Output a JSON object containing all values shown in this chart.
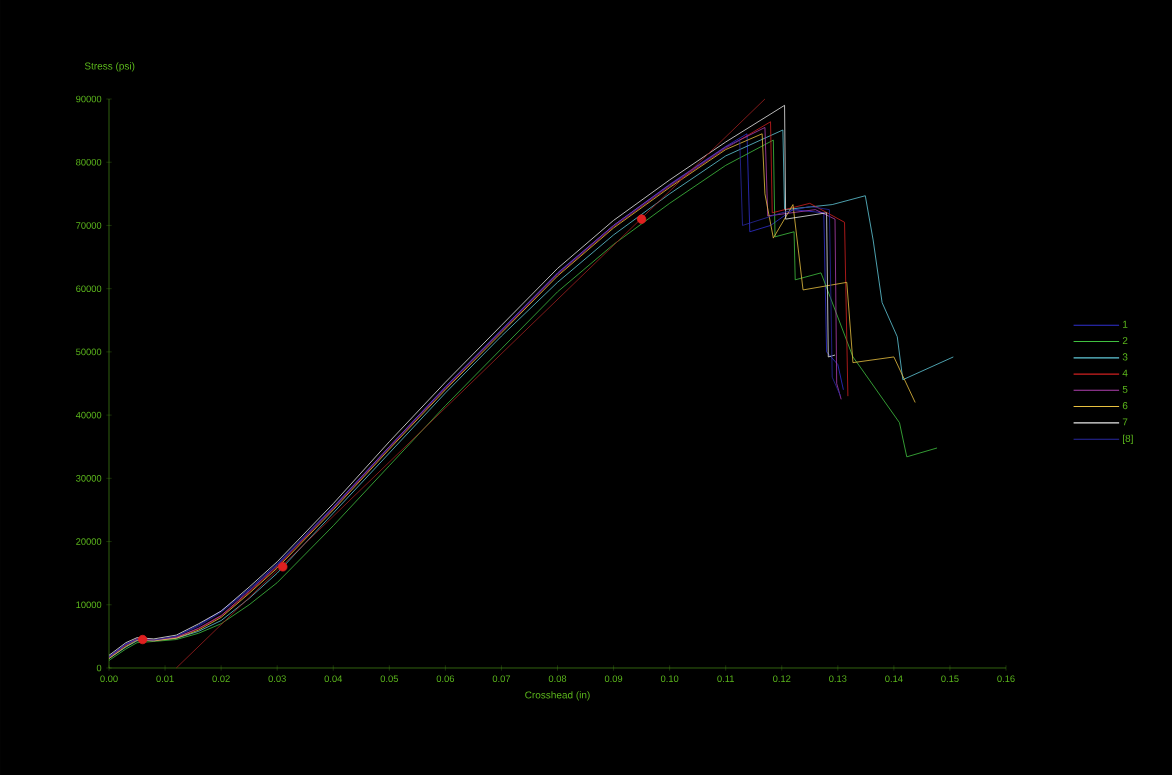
{
  "chart_data": {
    "type": "line",
    "xlabel": "Crosshead (in)",
    "ylabel": "Stress (psi)",
    "xlim": [
      0,
      0.16
    ],
    "ylim": [
      0,
      90000
    ],
    "xticks": [
      {
        "value": 0,
        "label": "0.00"
      },
      {
        "value": 0.01,
        "label": "0.01"
      },
      {
        "value": 0.02,
        "label": "0.02"
      },
      {
        "value": 0.03,
        "label": "0.03"
      },
      {
        "value": 0.04,
        "label": "0.04"
      },
      {
        "value": 0.05,
        "label": "0.05"
      },
      {
        "value": 0.06,
        "label": "0.06"
      },
      {
        "value": 0.07,
        "label": "0.07"
      },
      {
        "value": 0.08,
        "label": "0.08"
      },
      {
        "value": 0.09,
        "label": "0.09"
      },
      {
        "value": 0.1,
        "label": "0.10"
      },
      {
        "value": 0.11,
        "label": "0.11"
      },
      {
        "value": 0.12,
        "label": "0.12"
      },
      {
        "value": 0.13,
        "label": "0.13"
      },
      {
        "value": 0.14,
        "label": "0.14"
      },
      {
        "value": 0.15,
        "label": "0.15"
      },
      {
        "value": 0.16,
        "label": "0.16"
      }
    ],
    "yticks": [
      0,
      10000,
      20000,
      30000,
      40000,
      50000,
      60000,
      70000,
      80000,
      90000
    ],
    "legend": "right",
    "series": [
      {
        "name": "1",
        "color": "#3030d0",
        "x": [
          0,
          0.003,
          0.005,
          0.008,
          0.012,
          0.016,
          0.02,
          0.025,
          0.03,
          0.04,
          0.05,
          0.06,
          0.07,
          0.08,
          0.09,
          0.1,
          0.11,
          0.1138,
          0.1143,
          0.118,
          0.122,
          0.1275,
          0.128,
          0.13,
          0.131
        ],
        "values": [
          1800,
          3800,
          4600,
          4400,
          5000,
          6800,
          9000,
          12500,
          16500,
          25500,
          35000,
          44500,
          53500,
          62500,
          70000,
          76500,
          82500,
          84500,
          69000,
          70000,
          72500,
          72000,
          50000,
          48000,
          44000
        ]
      },
      {
        "name": "2",
        "color": "#40c040",
        "x": [
          0,
          0.003,
          0.005,
          0.008,
          0.012,
          0.016,
          0.02,
          0.025,
          0.03,
          0.04,
          0.05,
          0.06,
          0.07,
          0.08,
          0.09,
          0.1,
          0.11,
          0.1185,
          0.1188,
          0.1222,
          0.1224,
          0.127,
          0.1327,
          0.134,
          0.141,
          0.1423,
          0.1477
        ],
        "values": [
          1200,
          3000,
          4000,
          4200,
          4500,
          5500,
          7000,
          10000,
          13500,
          22500,
          32000,
          41500,
          50500,
          59500,
          67000,
          73500,
          79500,
          83500,
          68200,
          69000,
          61400,
          62500,
          49200,
          47600,
          38800,
          33400,
          34800
        ]
      },
      {
        "name": "3",
        "color": "#60c8d8",
        "x": [
          0,
          0.003,
          0.005,
          0.008,
          0.012,
          0.016,
          0.02,
          0.025,
          0.03,
          0.04,
          0.05,
          0.06,
          0.07,
          0.08,
          0.09,
          0.1,
          0.11,
          0.1202,
          0.1205,
          0.129,
          0.1349,
          0.1363,
          0.1379,
          0.1406,
          0.1416,
          0.1506
        ],
        "values": [
          1500,
          3300,
          4300,
          4400,
          4700,
          5800,
          7500,
          11000,
          15000,
          24500,
          34000,
          43500,
          52500,
          61000,
          68500,
          75000,
          81000,
          85100,
          72500,
          73300,
          74700,
          67700,
          57800,
          52400,
          45600,
          49200
        ]
      },
      {
        "name": "4",
        "color": "#d02020",
        "x": [
          0,
          0.003,
          0.005,
          0.008,
          0.012,
          0.016,
          0.02,
          0.025,
          0.03,
          0.04,
          0.05,
          0.06,
          0.07,
          0.08,
          0.09,
          0.1,
          0.11,
          0.118,
          0.1183,
          0.125,
          0.1312,
          0.1318
        ],
        "values": [
          1600,
          3600,
          4600,
          4400,
          4900,
          6200,
          8200,
          12000,
          16000,
          25200,
          34800,
          44200,
          53200,
          62200,
          69800,
          76200,
          82200,
          86400,
          72000,
          73500,
          70500,
          43000
        ]
      },
      {
        "name": "5",
        "color": "#b040b0",
        "x": [
          0,
          0.003,
          0.005,
          0.008,
          0.012,
          0.016,
          0.02,
          0.025,
          0.03,
          0.04,
          0.05,
          0.06,
          0.07,
          0.08,
          0.09,
          0.1,
          0.11,
          0.117,
          0.1175,
          0.126,
          0.1295,
          0.1298,
          0.1306
        ],
        "values": [
          1700,
          3700,
          4500,
          4300,
          4800,
          6300,
          8300,
          12200,
          16200,
          25400,
          35000,
          44400,
          53400,
          62400,
          70000,
          76400,
          82400,
          85500,
          71500,
          72500,
          71000,
          45000,
          42500
        ]
      },
      {
        "name": "6",
        "color": "#e8c040",
        "x": [
          0,
          0.003,
          0.005,
          0.008,
          0.012,
          0.016,
          0.02,
          0.025,
          0.03,
          0.04,
          0.05,
          0.06,
          0.07,
          0.08,
          0.09,
          0.1,
          0.11,
          0.1165,
          0.117,
          0.1185,
          0.122,
          0.1238,
          0.1316,
          0.1327,
          0.14,
          0.1438
        ],
        "values": [
          1500,
          3400,
          4400,
          4300,
          4700,
          6000,
          8000,
          11800,
          15800,
          25000,
          34600,
          44000,
          53000,
          62000,
          69600,
          76000,
          82000,
          84500,
          75000,
          68000,
          73300,
          59800,
          61000,
          48300,
          49200,
          42000
        ]
      },
      {
        "name": "7",
        "color": "#e8e8e8",
        "x": [
          0,
          0.003,
          0.005,
          0.008,
          0.012,
          0.016,
          0.02,
          0.025,
          0.03,
          0.04,
          0.05,
          0.06,
          0.07,
          0.08,
          0.09,
          0.1,
          0.11,
          0.1205,
          0.1207,
          0.128,
          0.1283,
          0.1295
        ],
        "values": [
          2000,
          4000,
          4800,
          4600,
          5200,
          7000,
          9000,
          12800,
          16800,
          26000,
          35800,
          45200,
          54200,
          63200,
          70800,
          77200,
          83200,
          89000,
          71000,
          72000,
          49200,
          49500
        ]
      },
      {
        "name": "[8]",
        "color": "#2828a0",
        "x": [
          0,
          0.003,
          0.005,
          0.008,
          0.012,
          0.016,
          0.02,
          0.025,
          0.03,
          0.04,
          0.05,
          0.06,
          0.07,
          0.08,
          0.09,
          0.1,
          0.11,
          0.1125,
          0.113,
          0.12,
          0.125,
          0.1285,
          0.129,
          0.1305
        ],
        "values": [
          1700,
          3700,
          4500,
          4400,
          5000,
          6600,
          8800,
          12300,
          16300,
          25300,
          34900,
          44300,
          53300,
          62300,
          69900,
          76300,
          82300,
          83500,
          70000,
          72000,
          73000,
          72500,
          46000,
          43000
        ]
      },
      {
        "color": "#a02020",
        "x": [
          0.012,
          0.117
        ],
        "values": [
          0,
          90000
        ]
      },
      {
        "type": "scatter",
        "marker": "circle",
        "color": "#e02020",
        "x": [
          0.006,
          0.031,
          0.095
        ],
        "values": [
          4500,
          16000,
          71000
        ]
      }
    ]
  }
}
